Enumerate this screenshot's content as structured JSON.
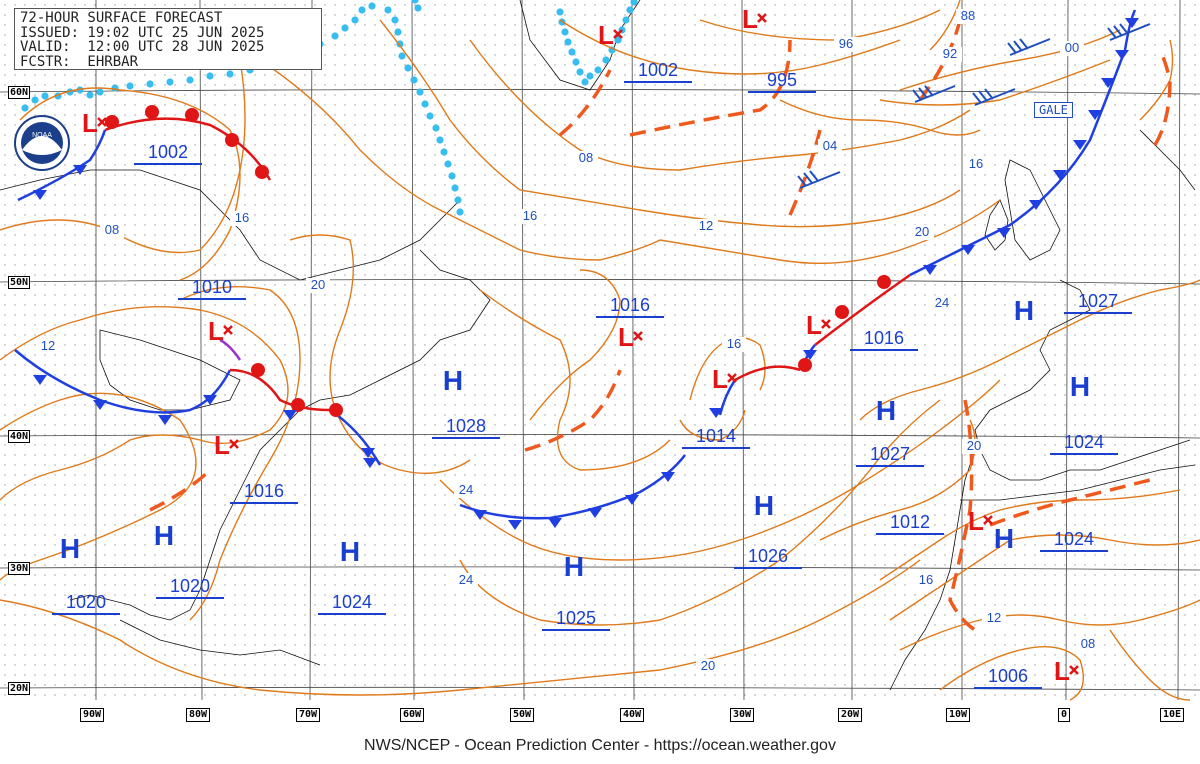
{
  "header": {
    "line1": "72-HOUR SURFACE FORECAST",
    "line2": "ISSUED: 19:02 UTC 25 JUN 2025",
    "line3": "VALID:  12:00 UTC 28 JUN 2025",
    "line4": "FCSTR:  EHRBAR"
  },
  "footer": "NWS/NCEP - Ocean Prediction Center - https://ocean.weather.gov",
  "logo": "NOAA",
  "gale_label": "GALE",
  "lat_labels": [
    "60N",
    "50N",
    "40N",
    "30N",
    "20N"
  ],
  "lon_labels": [
    "90W",
    "80W",
    "70W",
    "60W",
    "50W",
    "40W",
    "30W",
    "20W",
    "10W",
    "0",
    "10E"
  ],
  "colors": {
    "high": "#1a3fcf",
    "low": "#e01515",
    "isobar": "#e07a1a",
    "cold_front": "#1f3fe0",
    "warm_front": "#e01515",
    "trough": "#f0591e",
    "ice": "#38bdf0",
    "grid": "#333333"
  },
  "highs": [
    {
      "label": "H",
      "value": "1028"
    },
    {
      "label": "H",
      "value": "1027"
    },
    {
      "label": "H",
      "value": "1027"
    },
    {
      "label": "H",
      "value": "1024"
    },
    {
      "label": "H",
      "value": "1026"
    },
    {
      "label": "H",
      "value": "1025"
    },
    {
      "label": "H",
      "value": "1024"
    },
    {
      "label": "H",
      "value": "1020"
    },
    {
      "label": "H",
      "value": "1020"
    },
    {
      "label": "H",
      "value": "1024"
    }
  ],
  "lows": [
    {
      "label": "L",
      "value": "1002"
    },
    {
      "label": "L",
      "value": "1002"
    },
    {
      "label": "L",
      "value": "995"
    },
    {
      "label": "L",
      "value": "1010"
    },
    {
      "label": "L",
      "value": "1016"
    },
    {
      "label": "L",
      "value": "1016"
    },
    {
      "label": "L",
      "value": "1014"
    },
    {
      "label": "L",
      "value": "1016"
    },
    {
      "label": "L",
      "value": "1012"
    },
    {
      "label": "L",
      "value": "1006"
    }
  ],
  "isobar_labels": [
    "96",
    "88",
    "92",
    "00",
    "04",
    "08",
    "16",
    "12",
    "16",
    "20",
    "24",
    "08",
    "16",
    "20",
    "12",
    "16",
    "24",
    "24",
    "20",
    "20",
    "16",
    "12",
    "08"
  ]
}
